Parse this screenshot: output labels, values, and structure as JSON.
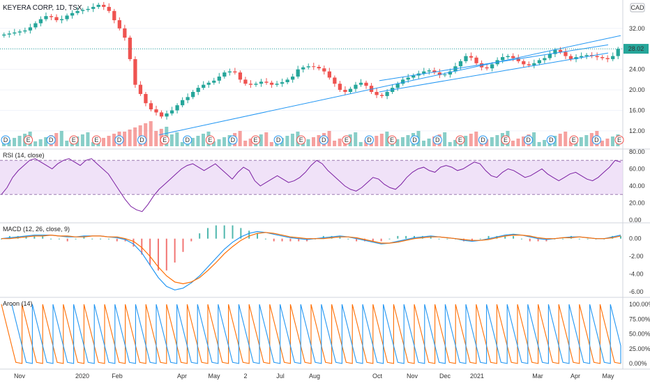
{
  "header": {
    "title": "KEYERA CORP, 1D, TSX",
    "currency": "CAD"
  },
  "colors": {
    "up": "#26a69a",
    "down": "#ef5350",
    "trendline": "#2196f3",
    "rsi_line": "#7b1fa2",
    "rsi_band": "#e9d5f5",
    "macd_line": "#2196f3",
    "signal_line": "#ff6d00",
    "aroon_up": "#ff6d00",
    "aroon_down": "#2196f3",
    "price_tag": "#26a69a",
    "grid": "#f0f3fa"
  },
  "chart_data": [
    {
      "type": "candlestick",
      "title": "KEYERA CORP, 1D, TSX",
      "ylabel": "CAD",
      "yticks": [
        "32.00",
        "28.00",
        "24.00",
        "20.00",
        "16.00",
        "12.00"
      ],
      "ylim": [
        9,
        37
      ],
      "last_price": "28.02",
      "x_labels": [
        "Nov",
        "2020",
        "Feb",
        "Apr",
        "May",
        "2",
        "Jul",
        "Aug",
        "Oct",
        "Nov",
        "Dec",
        "2021",
        "Mar",
        "Apr",
        "May"
      ],
      "closes_approx": [
        30.8,
        31.0,
        31.2,
        31.4,
        31.6,
        32.2,
        33.0,
        33.8,
        34.4,
        34.2,
        33.6,
        33.8,
        34.5,
        35.0,
        35.4,
        35.6,
        35.8,
        36.2,
        36.6,
        36.2,
        35.4,
        33.6,
        32.0,
        30.2,
        26.0,
        21.0,
        19.2,
        17.4,
        16.2,
        15.6,
        14.8,
        15.4,
        16.0,
        17.0,
        18.0,
        18.6,
        19.6,
        20.4,
        21.0,
        21.4,
        21.8,
        22.6,
        23.4,
        23.6,
        23.4,
        22.0,
        21.2,
        21.0,
        21.2,
        21.6,
        21.4,
        21.0,
        21.2,
        21.5,
        22.0,
        22.6,
        24.0,
        24.4,
        24.6,
        24.5,
        24.2,
        23.6,
        22.4,
        21.2,
        20.0,
        19.6,
        20.2,
        21.0,
        21.4,
        20.8,
        19.6,
        19.0,
        18.8,
        19.6,
        20.4,
        21.2,
        22.0,
        22.4,
        22.8,
        23.2,
        23.6,
        23.8,
        23.4,
        22.9,
        23.0,
        23.6,
        24.6,
        25.6,
        26.6,
        26.3,
        25.2,
        24.4,
        24.2,
        25.0,
        25.8,
        26.4,
        26.6,
        26.2,
        25.6,
        25.0,
        24.8,
        25.2,
        25.8,
        26.2,
        27.0,
        27.8,
        27.4,
        26.6,
        26.0,
        26.4,
        26.6,
        26.8,
        26.6,
        26.4,
        26.2,
        26.0,
        26.6,
        28.0
      ],
      "trendlines": [
        {
          "from": [
            "Mar 2020",
            11.2
          ],
          "to": [
            "May 2021",
            30.6
          ]
        },
        {
          "from": [
            "Oct 2020",
            21.8
          ],
          "to": [
            "May 2021",
            28.8
          ]
        },
        {
          "from": [
            "Oct 2020",
            19.6
          ],
          "to": [
            "May 2021",
            27.2
          ]
        }
      ],
      "event_markers": [
        "D",
        "E",
        "D",
        "E",
        "E",
        "D",
        "D",
        "E",
        "D",
        "E",
        "D",
        "E",
        "D",
        "E",
        "D",
        "E",
        "D",
        "E",
        "D",
        "D",
        "E",
        "D",
        "E",
        "D",
        "D",
        "E",
        "D",
        "E"
      ]
    },
    {
      "type": "line",
      "title": "RSI (14, close)",
      "yticks": [
        "80.00",
        "60.00",
        "40.00",
        "20.00",
        "0.00"
      ],
      "ylim": [
        0,
        80
      ],
      "band": [
        30,
        70
      ],
      "values_approx": [
        30,
        38,
        50,
        58,
        64,
        70,
        72,
        68,
        64,
        60,
        66,
        70,
        72,
        68,
        64,
        70,
        72,
        66,
        60,
        54,
        44,
        34,
        24,
        16,
        12,
        10,
        18,
        28,
        36,
        42,
        48,
        54,
        60,
        64,
        66,
        62,
        58,
        62,
        66,
        60,
        54,
        48,
        56,
        62,
        58,
        46,
        40,
        44,
        48,
        52,
        48,
        44,
        46,
        50,
        56,
        64,
        70,
        66,
        58,
        52,
        46,
        40,
        36,
        34,
        38,
        44,
        50,
        48,
        42,
        38,
        36,
        42,
        50,
        56,
        60,
        62,
        58,
        56,
        62,
        64,
        62,
        58,
        60,
        64,
        68,
        66,
        58,
        52,
        50,
        56,
        60,
        58,
        54,
        50,
        52,
        56,
        60,
        54,
        50,
        46,
        50,
        54,
        56,
        52,
        48,
        46,
        50,
        56,
        62,
        70,
        68
      ]
    },
    {
      "type": "line",
      "title": "MACD (12, 26, close, 9)",
      "yticks": [
        "0.00",
        "-2.00",
        "-4.00",
        "-6.00"
      ],
      "ylim": [
        -6.4,
        1.0
      ],
      "series": [
        {
          "values_approx": [
            0.0,
            0.1,
            0.2,
            0.3,
            0.4,
            0.4,
            0.4,
            0.3,
            0.2,
            0.2,
            0.3,
            0.3,
            0.3,
            0.2,
            0.1,
            -0.1,
            -0.6,
            -1.6,
            -3.0,
            -4.4,
            -5.4,
            -5.8,
            -5.6,
            -5.0,
            -4.2,
            -3.2,
            -2.2,
            -1.2,
            -0.4,
            0.2,
            0.6,
            0.8,
            0.7,
            0.5,
            0.3,
            0.1,
            0.0,
            -0.1,
            0.0,
            0.1,
            0.2,
            0.3,
            0.2,
            0.0,
            -0.2,
            -0.4,
            -0.6,
            -0.5,
            -0.3,
            -0.1,
            0.1,
            0.2,
            0.3,
            0.2,
            0.1,
            0.0,
            -0.2,
            -0.3,
            -0.2,
            0.0,
            0.2,
            0.4,
            0.5,
            0.4,
            0.2,
            0.0,
            -0.1,
            0.0,
            0.1,
            0.2,
            0.2,
            0.1,
            0.0,
            0.0,
            0.2,
            0.4
          ]
        },
        {
          "values_approx": [
            0.0,
            0.0,
            0.1,
            0.2,
            0.3,
            0.3,
            0.4,
            0.3,
            0.3,
            0.2,
            0.2,
            0.3,
            0.3,
            0.2,
            0.2,
            0.0,
            -0.3,
            -1.0,
            -2.0,
            -3.2,
            -4.2,
            -4.9,
            -5.1,
            -4.9,
            -4.4,
            -3.6,
            -2.7,
            -1.7,
            -0.9,
            -0.2,
            0.3,
            0.6,
            0.7,
            0.6,
            0.4,
            0.2,
            0.1,
            0.0,
            0.0,
            0.0,
            0.1,
            0.2,
            0.2,
            0.1,
            -0.1,
            -0.3,
            -0.5,
            -0.5,
            -0.4,
            -0.2,
            0.0,
            0.1,
            0.2,
            0.2,
            0.1,
            0.0,
            -0.1,
            -0.2,
            -0.2,
            -0.1,
            0.1,
            0.3,
            0.4,
            0.4,
            0.3,
            0.1,
            0.0,
            0.0,
            0.1,
            0.1,
            0.2,
            0.1,
            0.0,
            0.0,
            0.1,
            0.3
          ]
        }
      ]
    },
    {
      "type": "line",
      "title": "Aroon (14)",
      "yticks": [
        "100.00%",
        "75.00%",
        "50.00%",
        "25.00%",
        "0.00%"
      ],
      "ylim": [
        0,
        100
      ],
      "cycles": 30
    }
  ]
}
